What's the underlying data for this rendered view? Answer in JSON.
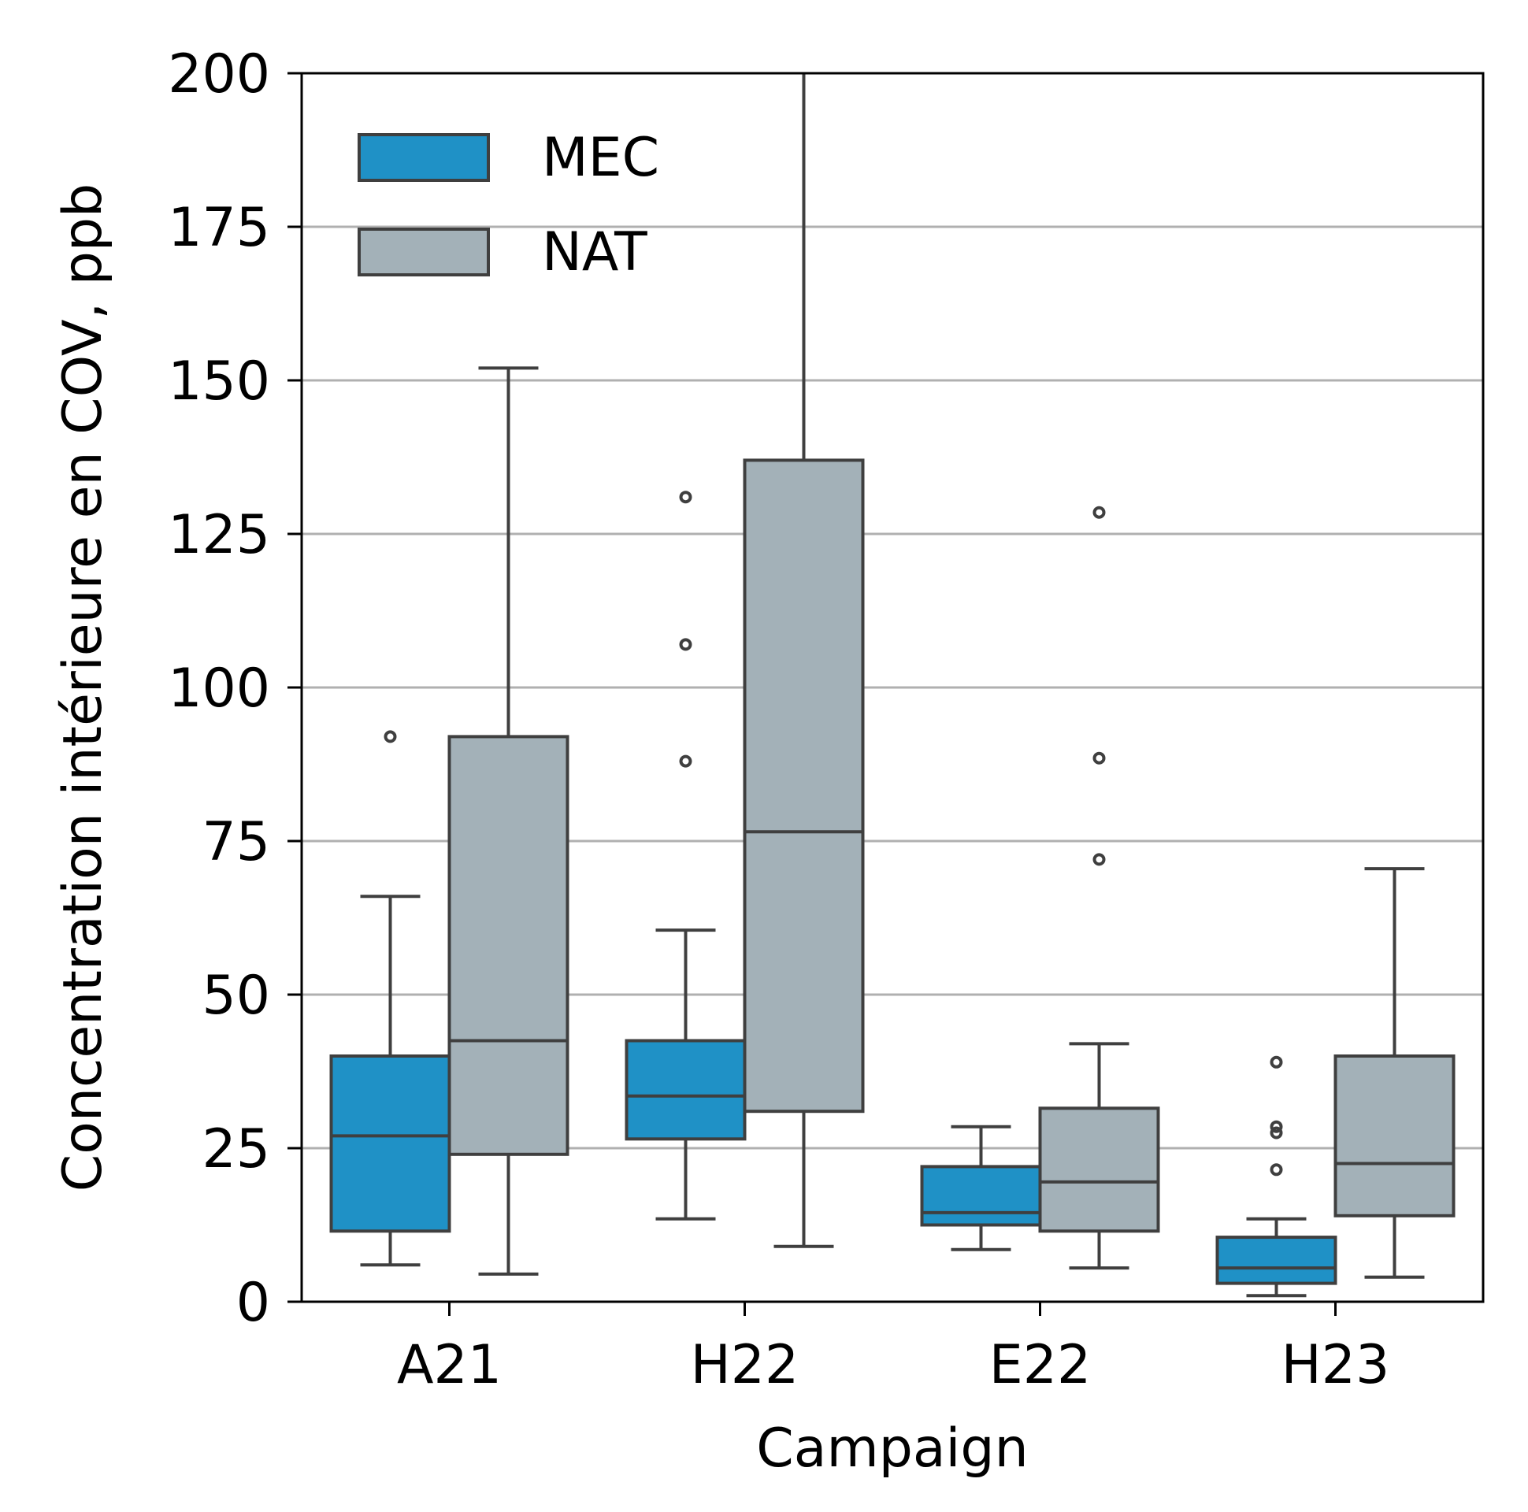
{
  "chart_data": {
    "type": "boxplot",
    "title": "",
    "xlabel": "Campaign",
    "ylabel": "Concentration intérieure en COV, ppb",
    "ylim": [
      0,
      200
    ],
    "yticks": [
      0,
      25,
      50,
      75,
      100,
      125,
      150,
      175,
      200
    ],
    "ytick_labels": [
      "0",
      "25",
      "50",
      "75",
      "100",
      "125",
      "150",
      "175",
      "200"
    ],
    "categories": [
      "A21",
      "H22",
      "E22",
      "H23"
    ],
    "grid": "horizontal",
    "legend_position": "top-left",
    "series": [
      {
        "name": "MEC",
        "color": "#1f91c6",
        "boxes": [
          {
            "whislo": 6,
            "q1": 11.5,
            "med": 27,
            "q3": 40,
            "whishi": 66,
            "fliers": [
              92
            ]
          },
          {
            "whislo": 13.5,
            "q1": 26.5,
            "med": 33.5,
            "q3": 42.5,
            "whishi": 60.5,
            "fliers": [
              88,
              107,
              131
            ]
          },
          {
            "whislo": 8.5,
            "q1": 12.5,
            "med": 14.5,
            "q3": 22,
            "whishi": 28.5,
            "fliers": []
          },
          {
            "whislo": 1,
            "q1": 3,
            "med": 5.5,
            "q3": 10.5,
            "whishi": 13.5,
            "fliers": [
              21.5,
              27.5,
              28.5,
              39
            ]
          }
        ]
      },
      {
        "name": "NAT",
        "color": "#a3b1b8",
        "boxes": [
          {
            "whislo": 4.5,
            "q1": 24,
            "med": 42.5,
            "q3": 92,
            "whishi": 152,
            "fliers": []
          },
          {
            "whislo": 9,
            "q1": 31,
            "med": 76.5,
            "q3": 137,
            "whishi": 200,
            "fliers": []
          },
          {
            "whislo": 5.5,
            "q1": 11.5,
            "med": 19.5,
            "q3": 31.5,
            "whishi": 42,
            "fliers": [
              72,
              88.5,
              128.5
            ]
          },
          {
            "whislo": 4,
            "q1": 14,
            "med": 22.5,
            "q3": 40,
            "whishi": 70.5,
            "fliers": []
          }
        ]
      }
    ],
    "edge_color": "#3f3f3f",
    "grid_color": "#b0b0b0"
  }
}
